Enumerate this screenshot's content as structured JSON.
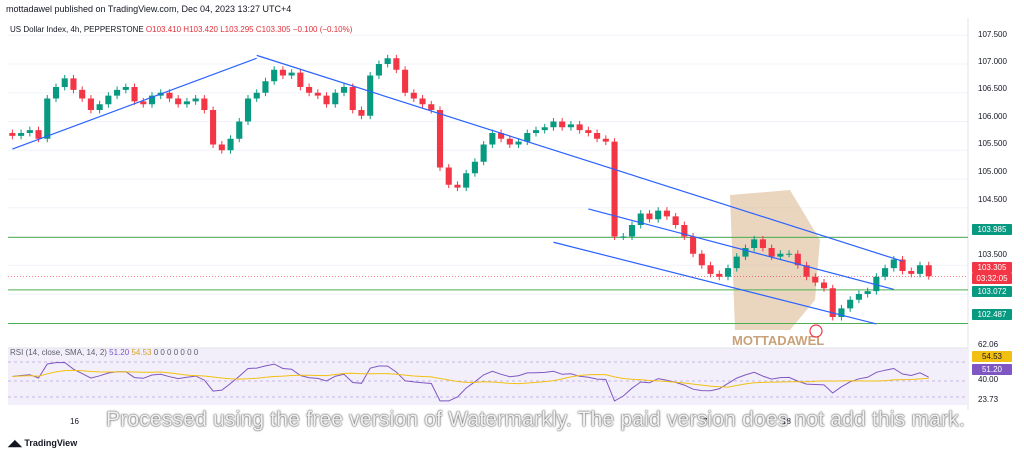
{
  "header": {
    "published_by": "mottadawel published on TradingView.com, Dec 04, 2023 13:27 UTC+4"
  },
  "legend": {
    "symbol": "US Dollar Index, 4h, PEPPERSTONE",
    "open": "O103.410",
    "high": "H103.420",
    "low": "L103.295",
    "close": "C103.305",
    "change": "−0.100 (−0.10%)"
  },
  "rsi_legend": {
    "name": "RSI (14, close, SMA, 14, 2)",
    "rsi_val": "51.20",
    "sma_val": "54.53",
    "zeros": "0 0 0 0 0 0 0"
  },
  "price_axis": {
    "ticks": [
      "107.500",
      "107.000",
      "106.500",
      "106.000",
      "105.500",
      "105.000",
      "104.500",
      "103.500"
    ],
    "rsi_ticks": [
      "62.06",
      "40.00",
      "23.73"
    ]
  },
  "badges": {
    "level_top": {
      "text": "103.985",
      "color": "#089981"
    },
    "current": {
      "text": "103.305",
      "color": "#f23645"
    },
    "countdown": {
      "text": "03:32:05",
      "color": "#f23645"
    },
    "level_mid": {
      "text": "103.072",
      "color": "#089981"
    },
    "level_low": {
      "text": "102.487",
      "color": "#089981"
    },
    "rsi_sma": {
      "text": "54.53",
      "color": "#f2c012"
    },
    "rsi_val": {
      "text": "51.20",
      "color": "#7e57c2"
    }
  },
  "x_labels": [
    "16",
    "7",
    "18"
  ],
  "watermark": "Processed using the free version of Watermarkly. The paid version does not add this mark.",
  "brand_watermark": "MOTTADAWEL",
  "footer": {
    "brand": "TradingView"
  },
  "chart_data": {
    "type": "candlestick",
    "title": "US Dollar Index, 4h, PEPPERSTONE",
    "ylim": [
      102.2,
      107.8
    ],
    "closes": [
      105.75,
      105.8,
      105.85,
      105.7,
      106.4,
      106.6,
      106.75,
      106.55,
      106.4,
      106.2,
      106.3,
      106.45,
      106.55,
      106.6,
      106.35,
      106.3,
      106.45,
      106.5,
      106.4,
      106.3,
      106.35,
      106.4,
      106.2,
      105.6,
      105.5,
      105.7,
      106.0,
      106.4,
      106.5,
      106.7,
      106.9,
      106.8,
      106.85,
      106.6,
      106.5,
      106.45,
      106.3,
      106.5,
      106.6,
      106.2,
      106.1,
      106.8,
      107.0,
      107.1,
      106.9,
      106.5,
      106.4,
      106.3,
      106.2,
      105.2,
      104.9,
      104.85,
      105.1,
      105.3,
      105.6,
      105.8,
      105.7,
      105.6,
      105.65,
      105.8,
      105.85,
      105.9,
      106.0,
      105.9,
      105.95,
      105.85,
      105.8,
      105.7,
      105.65,
      104.0,
      104.0,
      104.2,
      104.4,
      104.3,
      104.45,
      104.35,
      104.2,
      104.0,
      103.7,
      103.5,
      103.35,
      103.3,
      103.45,
      103.65,
      103.8,
      103.95,
      103.8,
      103.65,
      103.7,
      103.7,
      103.5,
      103.3,
      103.2,
      103.1,
      102.6,
      102.75,
      102.9,
      103.0,
      103.05,
      103.3,
      103.45,
      103.6,
      103.4,
      103.35,
      103.5,
      103.31
    ],
    "trendlines": [
      {
        "from": [
          0,
          105.52
        ],
        "to": [
          28,
          107.1
        ]
      },
      {
        "from": [
          28,
          107.15
        ],
        "to": [
          102,
          103.57
        ]
      },
      {
        "from": [
          66,
          104.48
        ],
        "to": [
          101,
          103.08
        ]
      },
      {
        "from": [
          62,
          103.9
        ],
        "to": [
          99,
          102.48
        ]
      }
    ],
    "horizontal_levels": [
      103.985,
      103.072,
      102.487
    ],
    "rsi": {
      "name": "RSI (14, close, SMA, 14, 2)",
      "value": 51.2,
      "sma": 54.53,
      "upper": 62.06,
      "lower": 23.73,
      "mid": 40.0
    }
  }
}
